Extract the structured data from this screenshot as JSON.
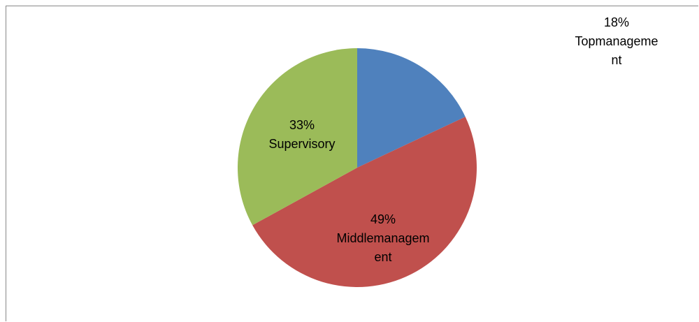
{
  "chart_data": {
    "type": "pie",
    "categories": [
      "Topmanagement",
      "Middlemanagement",
      "Supervisory"
    ],
    "values": [
      18,
      49,
      33
    ],
    "value_labels": [
      "18%",
      "49%",
      "33%"
    ],
    "colors": [
      "#4f81bd",
      "#c0504d",
      "#9bbb59"
    ]
  }
}
